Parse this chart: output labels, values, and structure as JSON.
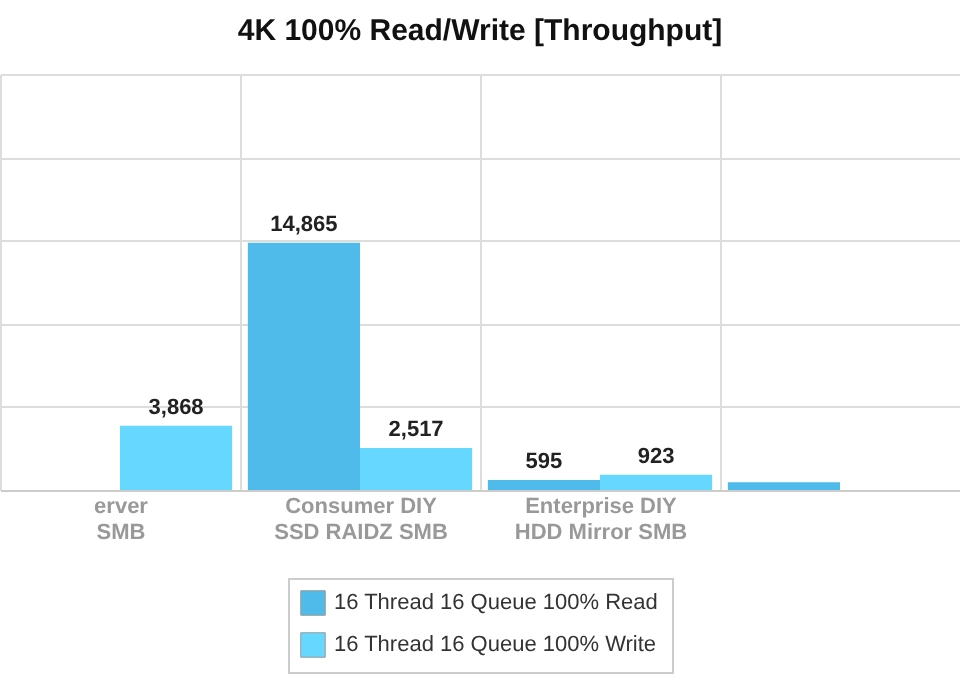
{
  "chart_data": {
    "type": "bar",
    "title": "4K 100% Read/Write [Throughput]",
    "categories": [
      "erver\nSMB",
      "Consumer DIY\nSSD RAIDZ SMB",
      "Enterprise DIY\nHDD Mirror SMB",
      null
    ],
    "series": [
      {
        "name": "16 Thread 16 Queue 100% Read",
        "color": "#4fbbea",
        "values": [
          null,
          14865,
          595,
          470
        ],
        "value_labels": [
          null,
          "14,865",
          "595",
          null
        ]
      },
      {
        "name": "16 Thread 16 Queue 100% Write",
        "color": "#66d8ff",
        "values": [
          3868,
          2517,
          923,
          null
        ],
        "value_labels": [
          "3,868",
          "2,517",
          "923",
          null
        ]
      }
    ],
    "ylim": [
      0,
      25000
    ],
    "yticks": [
      {
        "value": 0,
        "label": null
      },
      {
        "value": 5000,
        "label": null
      },
      {
        "value": 10000,
        "label": null
      },
      {
        "value": 15000,
        "label": null
      },
      {
        "value": 20000,
        "label": null
      },
      {
        "value": 25000,
        "label": null
      }
    ],
    "tick_labels": "x",
    "grid": true,
    "legend": "bottom"
  }
}
